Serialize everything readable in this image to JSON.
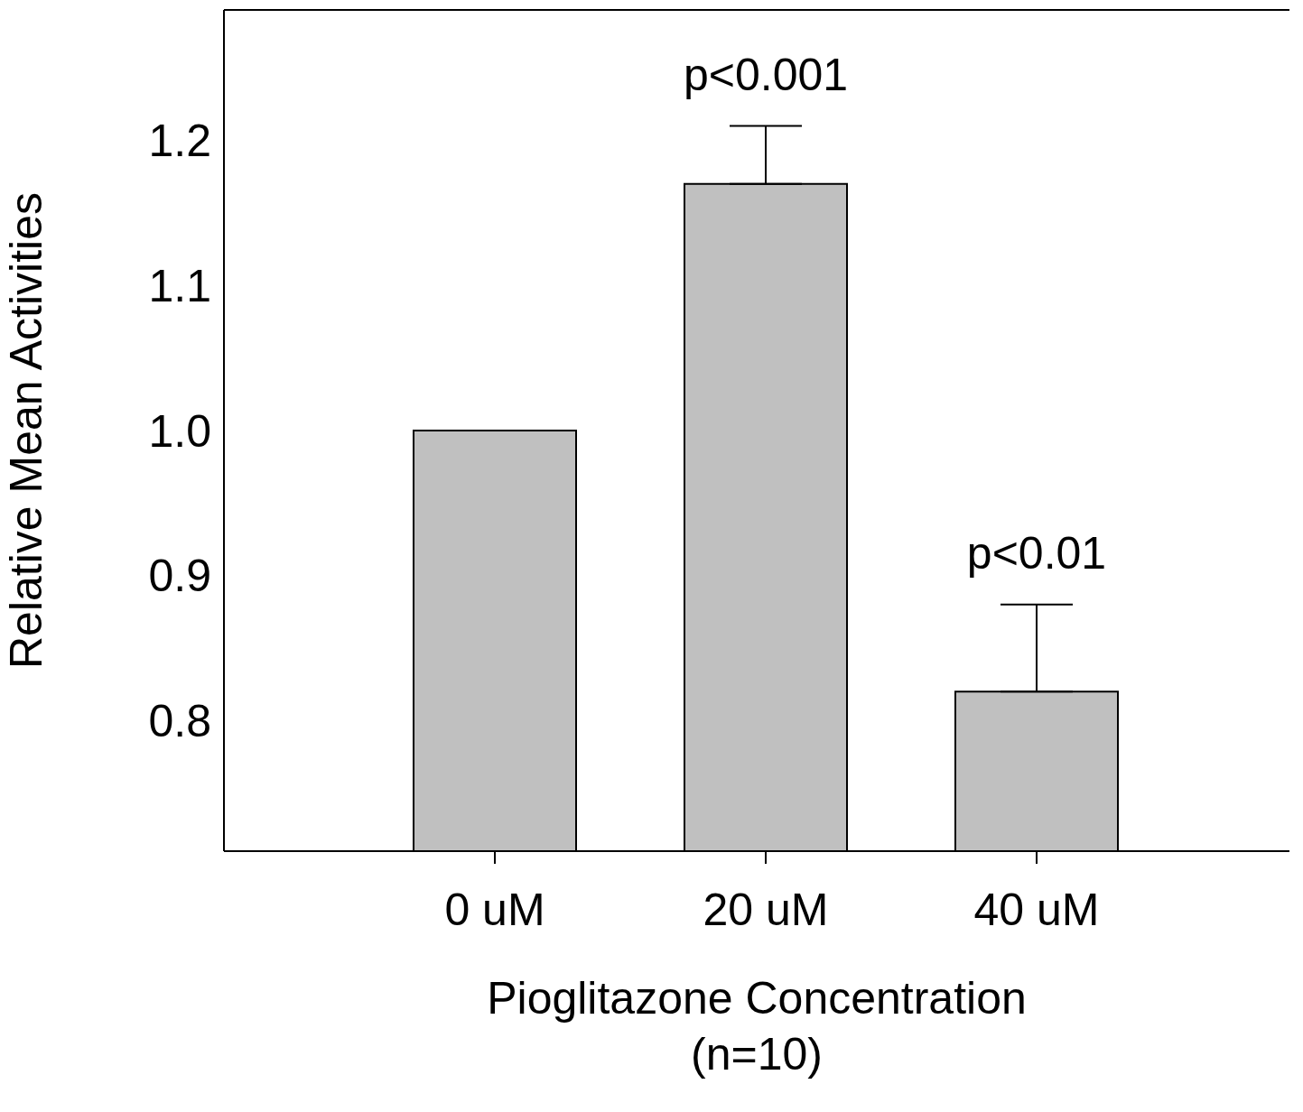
{
  "chart_data": {
    "type": "bar",
    "categories": [
      "0 uM",
      "20 uM",
      "40 uM"
    ],
    "values": [
      1.0,
      1.17,
      0.82
    ],
    "errors": [
      null,
      [
        1.17,
        1.21
      ],
      [
        0.82,
        0.88
      ]
    ],
    "color": "#c0c0c0",
    "xlabel": "Pioglitazone Concentration\n(n=10)",
    "ylabel": "Relative Mean Activities",
    "ylim": [
      0.71,
      1.29
    ],
    "yticks": [
      0.8,
      0.9,
      {
        "value": 1.0,
        "label": "1.0"
      },
      1.1,
      1.2
    ],
    "annotations": [
      "p<0.001",
      "p<0.01"
    ],
    "grid": false,
    "legend": false
  }
}
